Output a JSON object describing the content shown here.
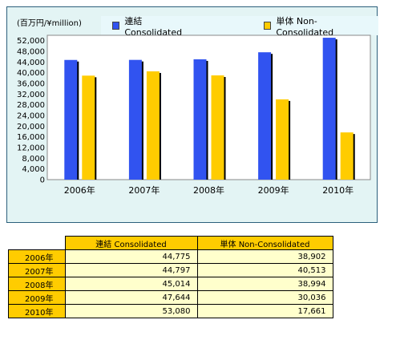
{
  "unit_label": "(百万円/¥million)",
  "legend": [
    {
      "label": "連結 Consolidated",
      "color": "#3153f0"
    },
    {
      "label": "単体 Non-Consolidated",
      "color": "#ffcc00"
    }
  ],
  "chart_data": {
    "type": "bar",
    "categories": [
      "2006年",
      "2007年",
      "2008年",
      "2009年",
      "2010年"
    ],
    "series": [
      {
        "name": "連結 Consolidated",
        "values": [
          44775,
          44797,
          45014,
          47644,
          53080
        ],
        "color": "#3153f0"
      },
      {
        "name": "単体 Non-Consolidated",
        "values": [
          38902,
          40513,
          38994,
          30036,
          17661
        ],
        "color": "#ffcc00"
      }
    ],
    "ylabel": "(百万円/¥million)",
    "ylim": [
      0,
      54000
    ],
    "yticks": [
      0,
      4000,
      8000,
      12000,
      16000,
      20000,
      24000,
      28000,
      32000,
      36000,
      40000,
      44000,
      48000,
      52000
    ],
    "ytick_labels": [
      "0",
      "4,000",
      "8,000",
      "12,000",
      "16,000",
      "20,000",
      "24,000",
      "28,000",
      "32,000",
      "36,000",
      "40,000",
      "44,000",
      "48,000",
      "52,000"
    ],
    "grid": false,
    "plot_background": "#ffffff"
  },
  "table": {
    "headers": [
      "連結 Consolidated",
      "単体 Non-Consolidated"
    ],
    "rows": [
      {
        "year": "2006年",
        "consolidated": "44,775",
        "non_consolidated": "38,902"
      },
      {
        "year": "2007年",
        "consolidated": "44,797",
        "non_consolidated": "40,513"
      },
      {
        "year": "2008年",
        "consolidated": "45,014",
        "non_consolidated": "38,994"
      },
      {
        "year": "2009年",
        "consolidated": "47,644",
        "non_consolidated": "30,036"
      },
      {
        "year": "2010年",
        "consolidated": "53,080",
        "non_consolidated": "17,661"
      }
    ]
  }
}
